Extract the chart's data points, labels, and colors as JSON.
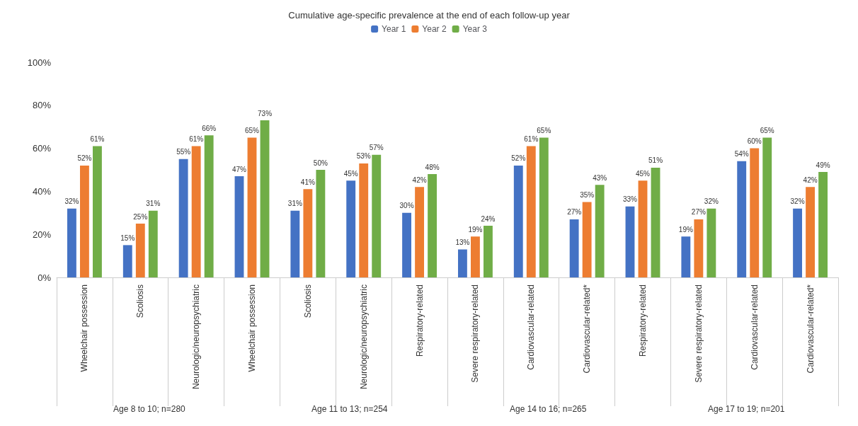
{
  "chart_data": {
    "type": "bar",
    "title": "Cumulative age-specific prevalence at the end of each follow-up year",
    "categories": [
      "Wheelchair possession",
      "Scoliosis",
      "Neurologic/neuropsychiatric",
      "Wheelchair possession",
      "Scoliosis",
      "Neurologic/neuropsychiatric",
      "Respiratory-related",
      "Severe respiratory-related",
      "Cardiovascular-related",
      "Cardiovascular-related*",
      "Respiratory-related",
      "Severe respiratory-related",
      "Cardiovascular-related",
      "Cardiovascular-related*"
    ],
    "series": [
      {
        "name": "Year 1",
        "color": "#4472c4",
        "values": [
          32,
          15,
          55,
          47,
          31,
          45,
          30,
          13,
          52,
          27,
          33,
          19,
          54,
          32
        ],
        "value_labels": [
          "32%",
          "15%",
          "55%",
          "47%",
          "31%",
          "45%",
          "30%",
          "13%",
          "52%",
          "27%",
          "33%",
          "19%",
          "54%",
          "32%"
        ]
      },
      {
        "name": "Year 2",
        "color": "#ed7d31",
        "values": [
          52,
          25,
          61,
          65,
          41,
          53,
          42,
          19,
          61,
          35,
          45,
          27,
          60,
          42
        ],
        "value_labels": [
          "52%",
          "25%",
          "61%",
          "65%",
          "41%",
          "53%",
          "42%",
          "19%",
          "61%",
          "35%",
          "45%",
          "27%",
          "60%",
          "42%"
        ]
      },
      {
        "name": "Year 3",
        "color": "#70ad47",
        "values": [
          61,
          31,
          66,
          73,
          50,
          57,
          48,
          24,
          65,
          43,
          51,
          32,
          65,
          49
        ],
        "value_labels": [
          "61%",
          "31%",
          "66%",
          "73%",
          "50%",
          "57%",
          "48%",
          "24%",
          "65%",
          "43%",
          "51%",
          "32%",
          "65%",
          "49%"
        ]
      }
    ],
    "ylim": [
      0,
      100
    ],
    "yticks": [
      {
        "value": 0,
        "label": "0%"
      },
      {
        "value": 20,
        "label": "20%"
      },
      {
        "value": 40,
        "label": "40%"
      },
      {
        "value": 60,
        "label": "60%"
      },
      {
        "value": 80,
        "label": "80%"
      },
      {
        "value": 100,
        "label": "100%"
      }
    ],
    "grid": false,
    "legend": "top",
    "annotations": [
      "Age 8 to 10; n=280",
      "Age 11 to 13; n=254",
      "Age 14 to 16; n=265",
      "Age 17 to 19; n=201"
    ]
  }
}
